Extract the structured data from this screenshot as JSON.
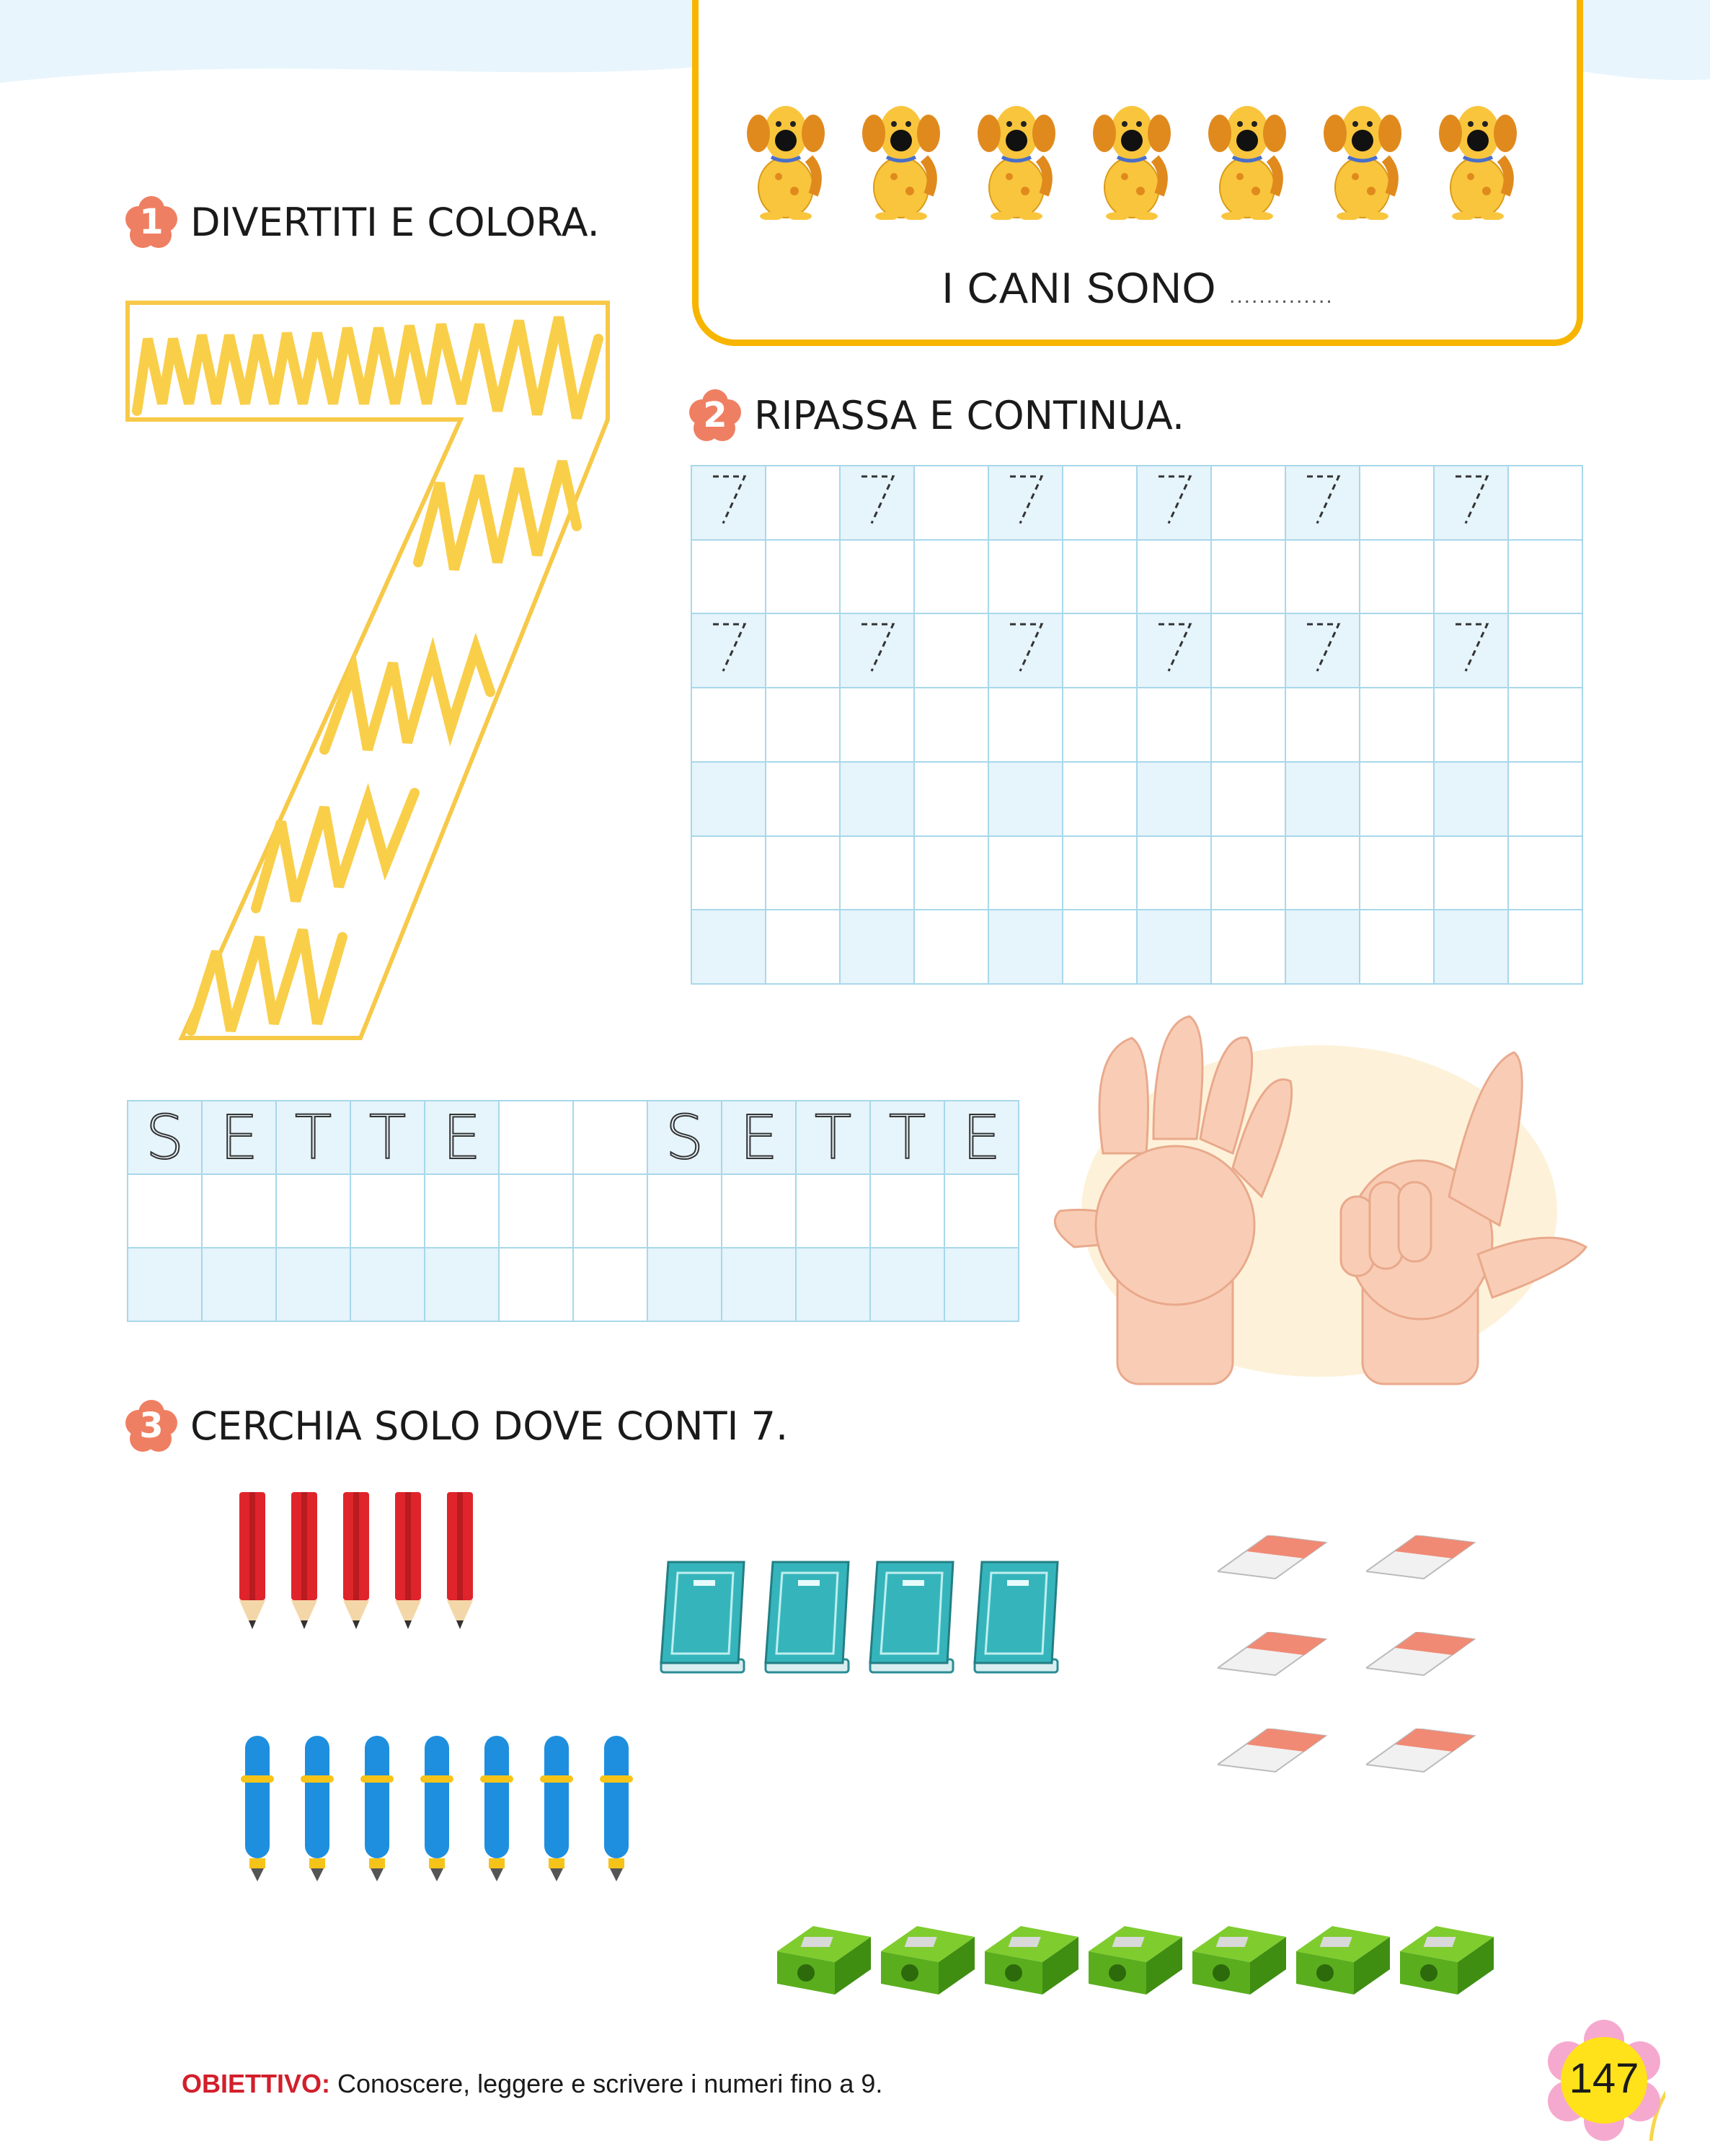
{
  "colors": {
    "accent_yellow": "#f7b500",
    "badge": "#ef7f62",
    "grid_line": "#a8d8ea",
    "grid_shade": "#e6f4fb",
    "objective_red": "#d21f2b"
  },
  "dog_box": {
    "dog_count": 7,
    "caption": "I CANI SONO",
    "blank": ".............."
  },
  "section1": {
    "number": "1",
    "title": "DIVERTITI E COLORA.",
    "digit": "7"
  },
  "section2": {
    "number": "2",
    "title": "RIPASSA E CONTINUA.",
    "guide_digit": "7",
    "columns": 12,
    "rows": 7
  },
  "word_grid": {
    "columns": 12,
    "rows": 3,
    "letters": [
      "S",
      "E",
      "T",
      "T",
      "E",
      "",
      "",
      "S",
      "E",
      "T",
      "T",
      "E"
    ]
  },
  "hands": {
    "label": "hands-showing-seven"
  },
  "section3": {
    "number": "3",
    "title": "CERCHIA SOLO DOVE CONTI 7.",
    "groups": [
      {
        "item": "pencil",
        "count": 5
      },
      {
        "item": "book",
        "count": 4
      },
      {
        "item": "eraser",
        "count": 6
      },
      {
        "item": "pen",
        "count": 7
      },
      {
        "item": "sharpener",
        "count": 7
      }
    ]
  },
  "footer": {
    "label": "OBIETTIVO:",
    "text": "Conoscere, leggere e scrivere i numeri fino a 9."
  },
  "page_number": "147"
}
